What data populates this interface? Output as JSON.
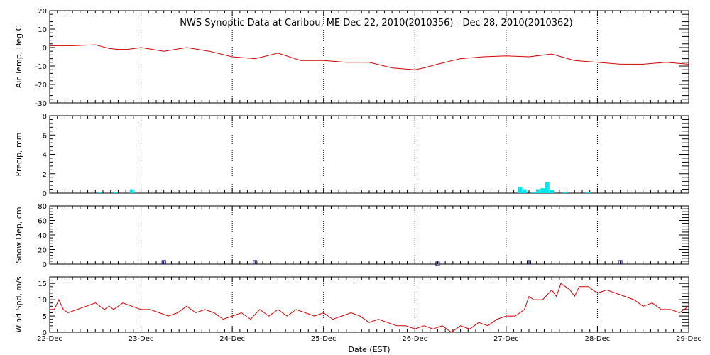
{
  "title": "NWS Synoptic Data at Caribou, ME    Dec 22, 2010(2010356) - Dec 28, 2010(2010362)",
  "xlabel": "Date (EST)",
  "x_ticks": [
    "22-Dec",
    "23-Dec",
    "24-Dec",
    "25-Dec",
    "26-Dec",
    "27-Dec",
    "28-Dec",
    "29-Dec"
  ],
  "colors": {
    "line": "#d40000",
    "precip": "#00e5ee",
    "snow": "#000080",
    "grid": "#000000"
  },
  "chart_data": [
    {
      "type": "line",
      "ylabel": "Air Temp, Deg C",
      "ylim": [
        -30,
        20
      ],
      "yticks": [
        20,
        10,
        0,
        -10,
        -20,
        -30
      ],
      "grid": true,
      "x_unit": "days since 22-Dec 00:00",
      "series": [
        {
          "x": [
            0,
            0.25,
            0.5,
            0.65,
            0.75,
            0.85,
            1.0,
            1.25,
            1.5,
            1.75,
            2.0,
            2.25,
            2.5,
            2.75,
            3.0,
            3.25,
            3.5,
            3.75,
            4.0,
            4.1,
            4.25,
            4.5,
            4.75,
            5.0,
            5.25,
            5.5,
            5.75,
            6.0,
            6.25,
            6.5,
            6.75,
            7.0
          ],
          "y": [
            1,
            1,
            1.5,
            -0.5,
            -1,
            -1,
            0,
            -2,
            0,
            -2,
            -5,
            -6,
            -3,
            -7,
            -7,
            -8,
            -8,
            -11,
            -12,
            -11,
            -9,
            -6,
            -5,
            -4.5,
            -5,
            -3.5,
            -7,
            -8,
            -9,
            -9,
            -8,
            -9
          ]
        }
      ]
    },
    {
      "type": "bar",
      "ylabel": "Precip, mm",
      "ylim": [
        0,
        8
      ],
      "yticks": [
        8,
        6,
        4,
        2,
        0
      ],
      "grid": true,
      "x": [
        0.55,
        0.72,
        0.9,
        5.15,
        5.2,
        5.3,
        5.35,
        5.4,
        5.45,
        5.5,
        5.65,
        5.9
      ],
      "values": [
        0.1,
        0.1,
        0.4,
        0.6,
        0.4,
        0.1,
        0.4,
        0.5,
        1.1,
        0.3,
        0.1,
        0.1
      ]
    },
    {
      "type": "scatter",
      "ylabel": "Snow Dep, cm",
      "ylim": [
        0,
        80
      ],
      "yticks": [
        80,
        60,
        40,
        20,
        0
      ],
      "grid": true,
      "x": [
        1.25,
        2.25,
        4.25,
        5.25,
        6.25
      ],
      "y": [
        2,
        2,
        0,
        2,
        2
      ]
    },
    {
      "type": "line",
      "ylabel": "Wind Spd, m/s",
      "ylim": [
        0,
        17
      ],
      "yticks": [
        15,
        10,
        5,
        0
      ],
      "grid": true,
      "series": [
        {
          "x": [
            0,
            0.05,
            0.1,
            0.15,
            0.2,
            0.3,
            0.4,
            0.5,
            0.6,
            0.65,
            0.7,
            0.8,
            0.9,
            1.0,
            1.1,
            1.2,
            1.3,
            1.4,
            1.5,
            1.6,
            1.7,
            1.8,
            1.9,
            2.0,
            2.1,
            2.2,
            2.3,
            2.4,
            2.5,
            2.6,
            2.7,
            2.8,
            2.9,
            3.0,
            3.1,
            3.2,
            3.3,
            3.4,
            3.5,
            3.6,
            3.7,
            3.8,
            3.9,
            4.0,
            4.1,
            4.2,
            4.3,
            4.4,
            4.5,
            4.6,
            4.7,
            4.8,
            4.9,
            5.0,
            5.1,
            5.2,
            5.25,
            5.3,
            5.4,
            5.5,
            5.55,
            5.6,
            5.7,
            5.75,
            5.8,
            5.9,
            6.0,
            6.1,
            6.2,
            6.3,
            6.4,
            6.5,
            6.6,
            6.7,
            6.8,
            6.9,
            7.0
          ],
          "y": [
            7,
            7,
            10,
            7,
            6,
            7,
            8,
            9,
            7,
            8,
            7,
            9,
            8,
            7,
            7,
            6,
            5,
            6,
            8,
            6,
            7,
            6,
            4,
            5,
            6,
            4,
            7,
            5,
            7,
            5,
            7,
            6,
            5,
            6,
            4,
            5,
            6,
            5,
            3,
            4,
            3,
            2,
            2,
            1,
            2,
            1,
            2,
            0,
            2,
            1,
            3,
            2,
            4,
            5,
            5,
            7,
            11,
            10,
            10,
            13,
            11,
            15,
            13,
            11,
            14,
            14,
            12,
            13,
            12,
            11,
            10,
            8,
            9,
            7,
            7,
            6,
            8
          ]
        }
      ]
    }
  ]
}
